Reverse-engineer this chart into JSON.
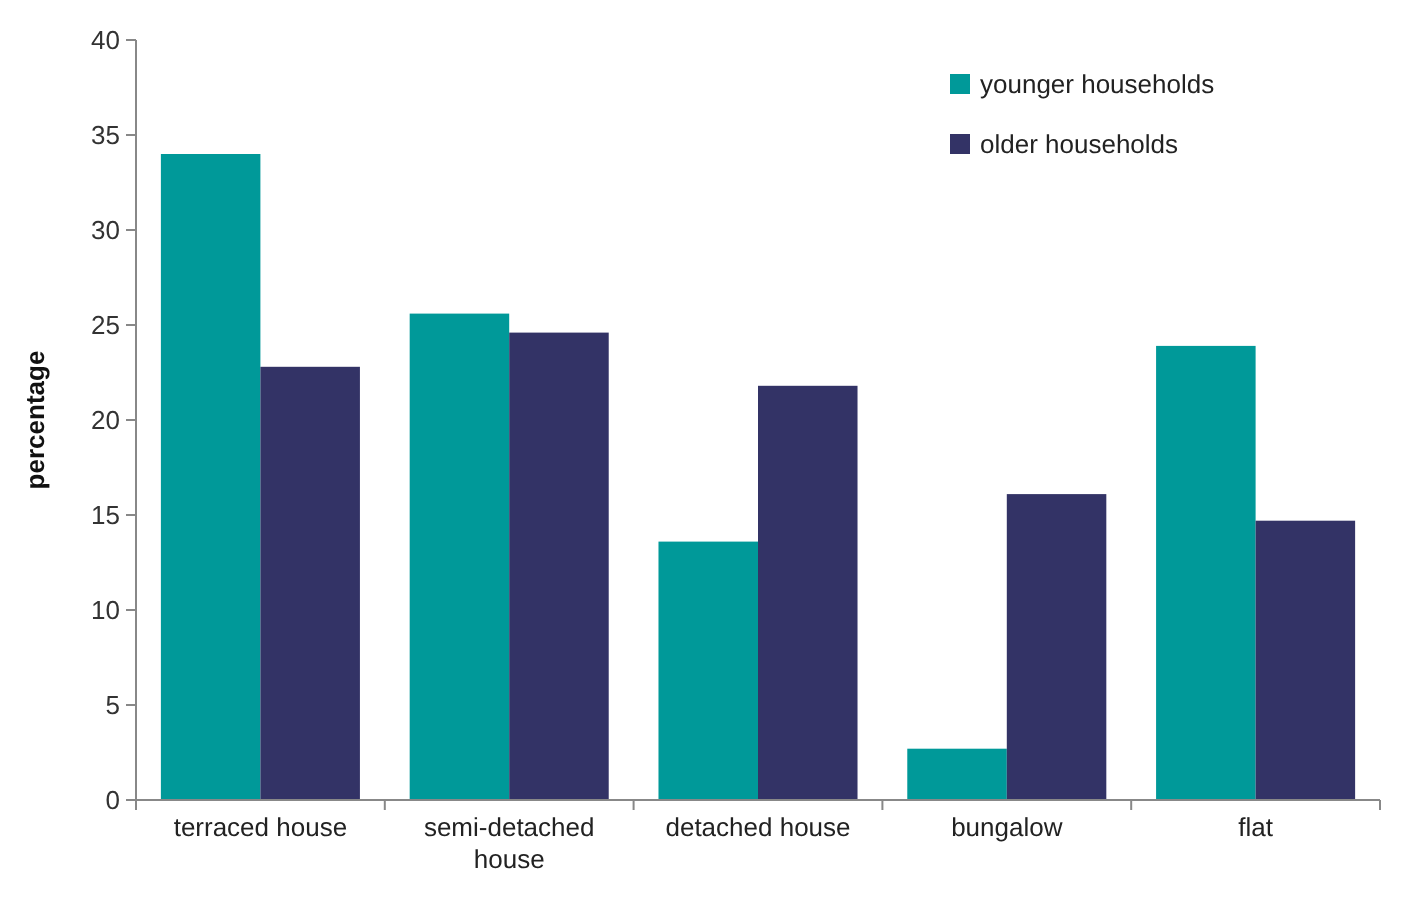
{
  "chart_data": {
    "type": "bar",
    "ylabel": "percentage",
    "categories": [
      "terraced house",
      "semi-detached house",
      "detached house",
      "bungalow",
      "flat"
    ],
    "series": [
      {
        "name": "younger households",
        "color": "#009999",
        "values": [
          34.0,
          25.6,
          13.6,
          2.7,
          23.9
        ]
      },
      {
        "name": "older households",
        "color": "#333366",
        "values": [
          22.8,
          24.6,
          21.8,
          16.1,
          14.7
        ]
      }
    ],
    "ylim": [
      0,
      40
    ],
    "yticks": [
      0,
      5,
      10,
      15,
      20,
      25,
      30,
      35,
      40
    ],
    "grid": false,
    "legend": "top right"
  }
}
